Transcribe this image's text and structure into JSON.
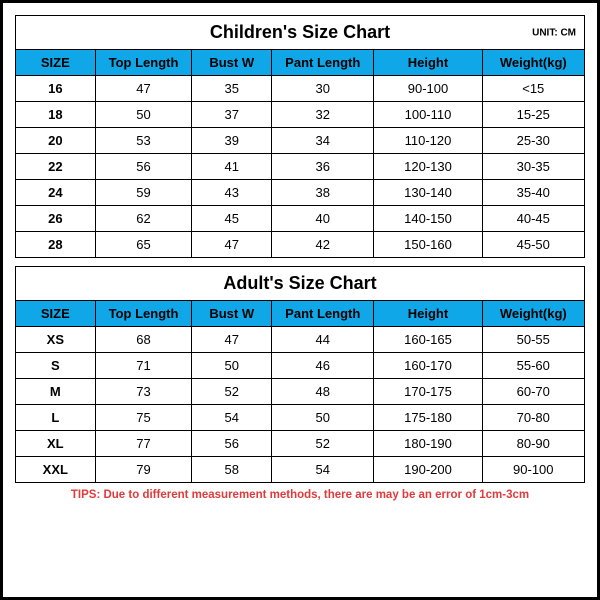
{
  "unit_label": "UNIT: CM",
  "header_bg": "#10a7e8",
  "tips_color": "#e13a3a",
  "children": {
    "title": "Children's Size Chart",
    "columns": [
      "SIZE",
      "Top Length",
      "Bust W",
      "Pant Length",
      "Height",
      "Weight(kg)"
    ],
    "col_widths": [
      "14%",
      "17%",
      "14%",
      "18%",
      "19%",
      "18%"
    ],
    "rows": [
      [
        "16",
        "47",
        "35",
        "30",
        "90-100",
        "<15"
      ],
      [
        "18",
        "50",
        "37",
        "32",
        "100-110",
        "15-25"
      ],
      [
        "20",
        "53",
        "39",
        "34",
        "110-120",
        "25-30"
      ],
      [
        "22",
        "56",
        "41",
        "36",
        "120-130",
        "30-35"
      ],
      [
        "24",
        "59",
        "43",
        "38",
        "130-140",
        "35-40"
      ],
      [
        "26",
        "62",
        "45",
        "40",
        "140-150",
        "40-45"
      ],
      [
        "28",
        "65",
        "47",
        "42",
        "150-160",
        "45-50"
      ]
    ]
  },
  "adult": {
    "title": "Adult's Size Chart",
    "columns": [
      "SIZE",
      "Top Length",
      "Bust W",
      "Pant Length",
      "Height",
      "Weight(kg)"
    ],
    "col_widths": [
      "14%",
      "17%",
      "14%",
      "18%",
      "19%",
      "18%"
    ],
    "rows": [
      [
        "XS",
        "68",
        "47",
        "44",
        "160-165",
        "50-55"
      ],
      [
        "S",
        "71",
        "50",
        "46",
        "160-170",
        "55-60"
      ],
      [
        "M",
        "73",
        "52",
        "48",
        "170-175",
        "60-70"
      ],
      [
        "L",
        "75",
        "54",
        "50",
        "175-180",
        "70-80"
      ],
      [
        "XL",
        "77",
        "56",
        "52",
        "180-190",
        "80-90"
      ],
      [
        "XXL",
        "79",
        "58",
        "54",
        "190-200",
        "90-100"
      ]
    ]
  },
  "tips": "TIPS: Due to different measurement methods, there are may be an error of 1cm-3cm"
}
